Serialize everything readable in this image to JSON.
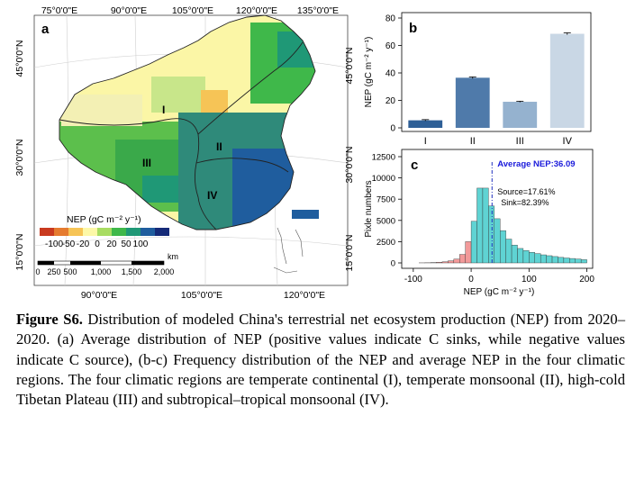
{
  "figure": {
    "caption_label": "Figure S6.",
    "caption_text": " Distribution of modeled China's terrestrial net ecosystem production (NEP) from 2020–2020. (a) Average distribution of NEP (positive values indicate C sinks, while negative values indicate C source), (b-c) Frequency distribution of the NEP and average NEP in the four climatic regions. The four climatic regions are temperate continental (I), temperate monsoonal (II), high-cold Tibetan Plateau (III) and subtropical–tropical monsoonal (IV)."
  },
  "map": {
    "panel_label": "a",
    "top_lon_labels": [
      "75°0'0\"E",
      "90°0'0\"E",
      "105°0'0\"E",
      "120°0'0\"E",
      "135°0'0\"E"
    ],
    "bottom_lon_labels": [
      "90°0'0\"E",
      "105°0'0\"E",
      "120°0'0\"E"
    ],
    "left_lat_labels": [
      "45°0'0\"N",
      "30°0'0\"N",
      "15°0'0\"N"
    ],
    "right_lat_labels": [
      "45°0'0\"N",
      "30°0'0\"N",
      "15°0'0\"N"
    ],
    "region_labels": [
      "I",
      "II",
      "III",
      "IV"
    ],
    "legend_title": "NEP (gC m⁻² y⁻¹)",
    "legend_ticks": [
      "-100",
      "-50",
      "-20",
      "0",
      "20",
      "50",
      "100"
    ],
    "legend_colors": [
      "#c93a1f",
      "#e57b2f",
      "#f6c456",
      "#fdf8a8",
      "#a8dc62",
      "#3fb84a",
      "#1f9876",
      "#1f5d9e",
      "#152a78"
    ],
    "scale_ticks": [
      "0",
      "250",
      "500",
      "1,000",
      "1,500",
      "2,000"
    ],
    "scale_unit": "km"
  },
  "chart_data": [
    {
      "type": "bar",
      "panel_label": "b",
      "categories": [
        "I",
        "II",
        "III",
        "IV"
      ],
      "values": [
        5.5,
        36.5,
        19,
        68.5
      ],
      "errors": [
        0.5,
        0.6,
        0.4,
        0.7
      ],
      "colors": [
        "#2e5f96",
        "#4f7aaa",
        "#95b2cf",
        "#c9d7e5"
      ],
      "ylabel": "NEP (gC m⁻² y⁻¹)",
      "ylim": [
        0,
        80
      ],
      "yticks": [
        0,
        20,
        40,
        60,
        80
      ],
      "grid": false
    },
    {
      "type": "histogram",
      "panel_label": "c",
      "bin_width": 10,
      "bins": [
        {
          "x0": -90,
          "count": 10
        },
        {
          "x0": -80,
          "count": 20
        },
        {
          "x0": -70,
          "count": 40
        },
        {
          "x0": -60,
          "count": 80
        },
        {
          "x0": -50,
          "count": 130
        },
        {
          "x0": -40,
          "count": 250
        },
        {
          "x0": -30,
          "count": 450
        },
        {
          "x0": -20,
          "count": 1000
        },
        {
          "x0": -10,
          "count": 2500
        },
        {
          "x0": 0,
          "count": 4900
        },
        {
          "x0": 10,
          "count": 8800
        },
        {
          "x0": 20,
          "count": 8800
        },
        {
          "x0": 30,
          "count": 6700
        },
        {
          "x0": 40,
          "count": 5200
        },
        {
          "x0": 50,
          "count": 3800
        },
        {
          "x0": 60,
          "count": 2800
        },
        {
          "x0": 70,
          "count": 2100
        },
        {
          "x0": 80,
          "count": 1700
        },
        {
          "x0": 90,
          "count": 1450
        },
        {
          "x0": 100,
          "count": 1250
        },
        {
          "x0": 110,
          "count": 1100
        },
        {
          "x0": 120,
          "count": 950
        },
        {
          "x0": 130,
          "count": 850
        },
        {
          "x0": 140,
          "count": 750
        },
        {
          "x0": 150,
          "count": 650
        },
        {
          "x0": 160,
          "count": 580
        },
        {
          "x0": 170,
          "count": 520
        },
        {
          "x0": 180,
          "count": 460
        },
        {
          "x0": 190,
          "count": 380
        }
      ],
      "negative_color": "#f29a9a",
      "positive_color": "#5fd3d3",
      "average_nep": 36.09,
      "average_label": "Average NEP:36.09",
      "source_label": "Source=17.61%",
      "sink_label": "Sink=82.39%",
      "xlabel": "NEP (gC m⁻² y⁻¹)",
      "ylabel": "Pixle numbers",
      "xlim": [
        -120,
        210
      ],
      "xticks": [
        -100,
        0,
        100,
        200
      ],
      "ylim": [
        0,
        12500
      ],
      "yticks": [
        0,
        2500,
        5000,
        7500,
        10000,
        12500
      ]
    }
  ]
}
